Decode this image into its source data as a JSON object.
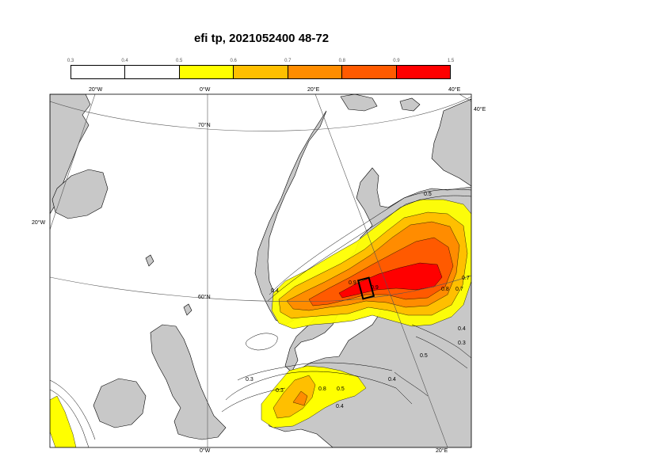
{
  "title": "efi tp, 2021052400 48-72",
  "legend": {
    "ticks": [
      "0.3",
      "0.4",
      "0.5",
      "0.6",
      "0.7",
      "0.8",
      "0.9",
      "1.5"
    ],
    "colors": [
      "#ffffff",
      "#ffffff",
      "#ffff00",
      "#ffbf00",
      "#ff8c00",
      "#ff5a00",
      "#ff0000"
    ]
  },
  "map_labels": {
    "lon_20w_top": "20°W",
    "lon_0_top": "0°W",
    "lon_20e_top": "20°E",
    "lon_40e_top": "40°E",
    "lon_40e_right": "40°E",
    "lat_70n": "70°N",
    "lat_60n": "60°N",
    "lon_20w_left": "20°W",
    "lon_0_bottom": "0°W",
    "lon_20e_bottom": "20°E"
  },
  "contour_labels": [
    "0.3",
    "0.4",
    "0.5",
    "0.4",
    "0.4",
    "0.3",
    "0.5",
    "0.7",
    "0.8",
    "0.9",
    "0.5",
    "0.4",
    "0.3",
    "0.7",
    "0.8",
    "0.9"
  ],
  "colors": {
    "land": "#c8c8c8",
    "sea": "#ffffff",
    "coast": "#000000",
    "grid": "#555555"
  }
}
